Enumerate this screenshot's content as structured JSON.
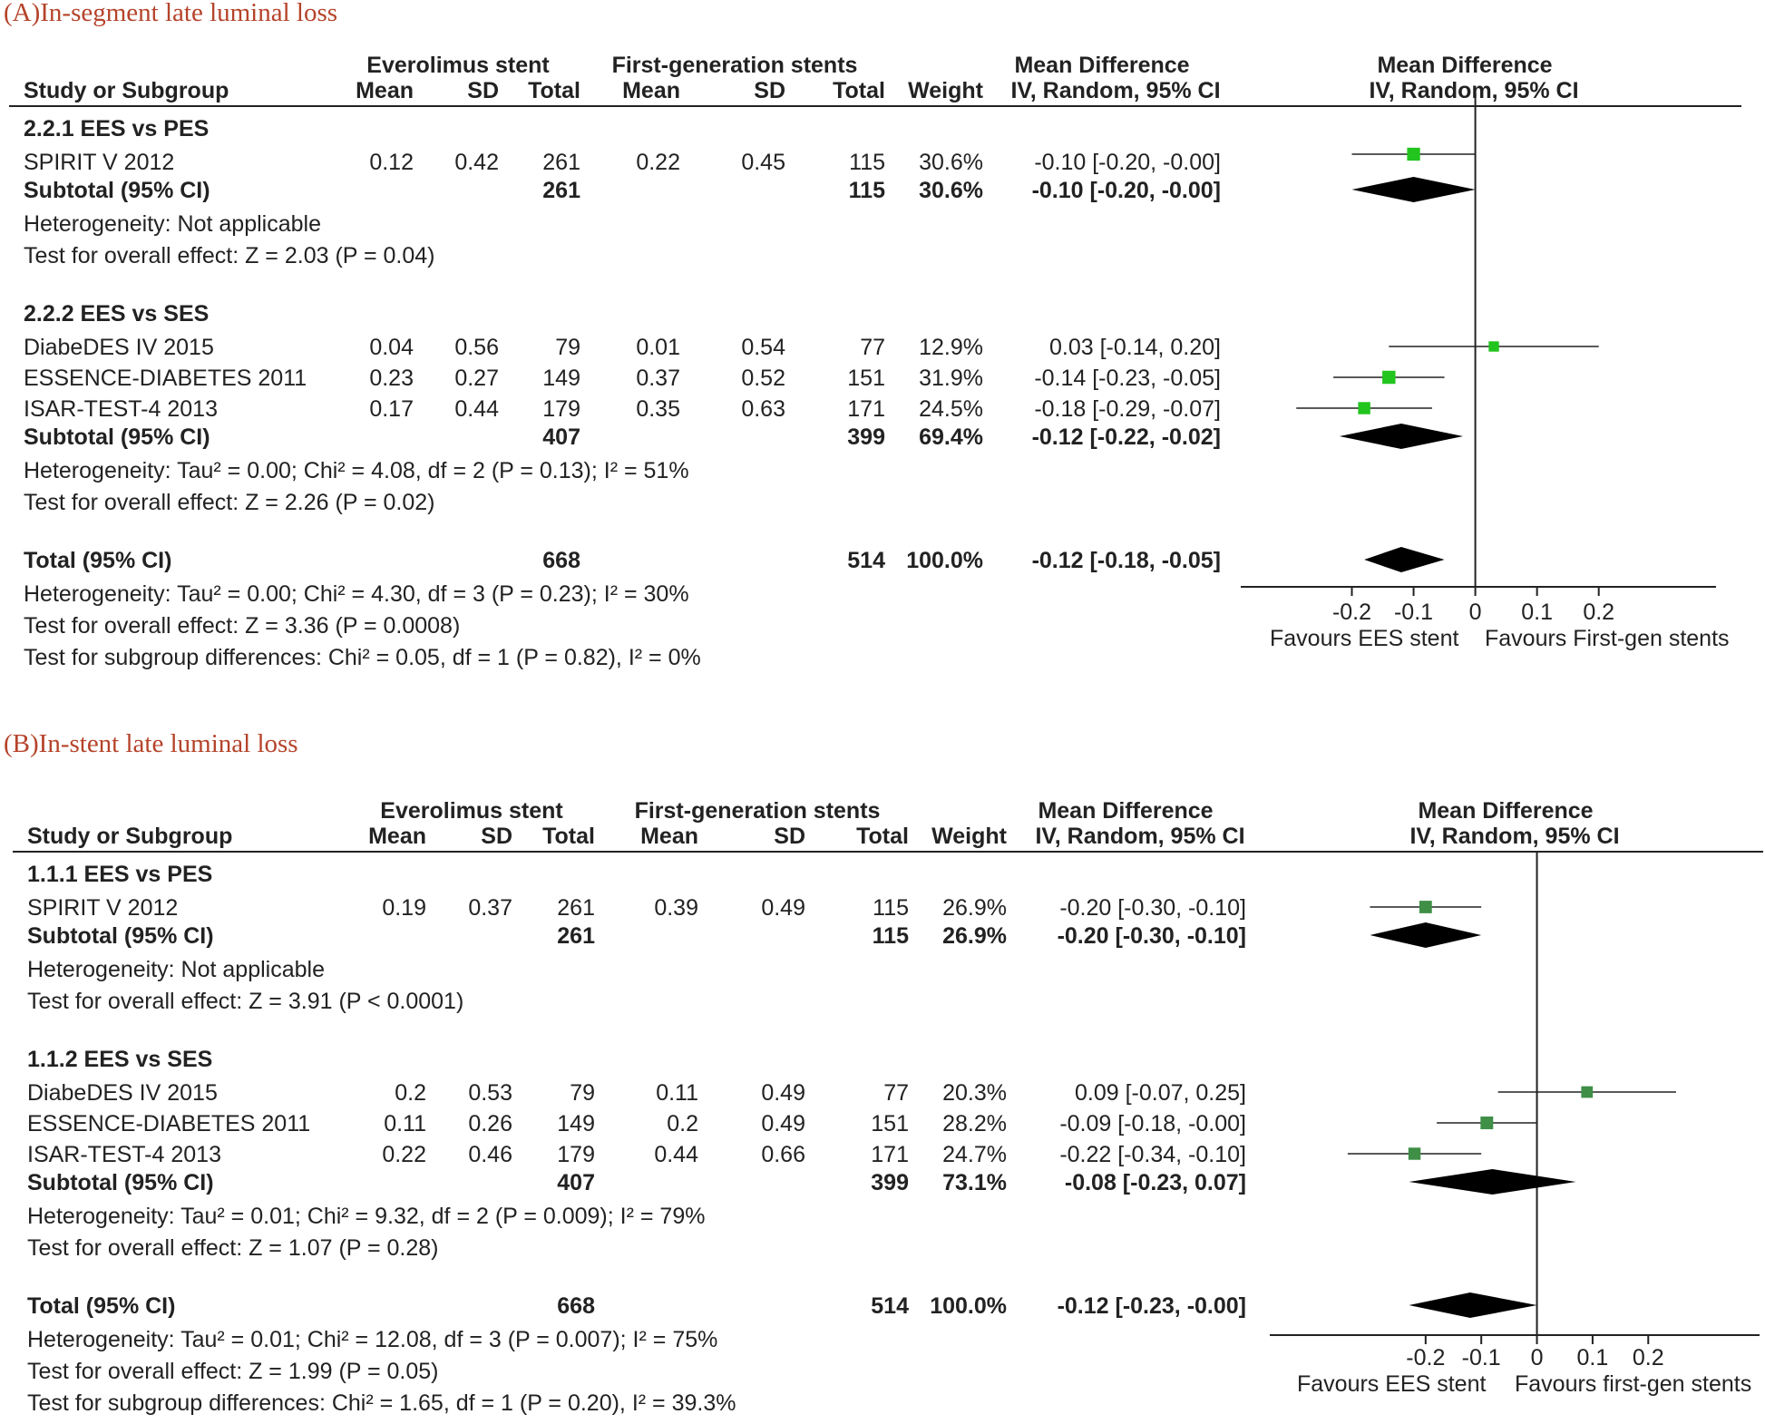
{
  "chart_data": [
    {
      "type": "forest",
      "panel": "A",
      "title": "(A)In-segment late luminal loss",
      "headers": {
        "group1": "Everolimus stent",
        "group2": "First-generation stents",
        "study": "Study or Subgroup",
        "mean": "Mean",
        "sd": "SD",
        "total": "Total",
        "weight": "Weight",
        "md_title": "Mean Difference",
        "md_method": "IV, Random, 95% CI",
        "plot_title": "Mean Difference",
        "plot_method": "IV, Random, 95% CI"
      },
      "subgroups": [
        {
          "name": "2.2.1 EES vs PES",
          "studies": [
            {
              "name": "SPIRIT V 2012",
              "m1": "0.12",
              "sd1": "0.42",
              "n1": "261",
              "m2": "0.22",
              "sd2": "0.45",
              "n2": "115",
              "weight": "30.6%",
              "ci_text": "-0.10 [-0.20, -0.00]",
              "md": -0.1,
              "lo": -0.2,
              "hi": -0.0,
              "w": 30.6
            }
          ],
          "subtotal": {
            "label": "Subtotal (95% CI)",
            "n1": "261",
            "n2": "115",
            "weight": "30.6%",
            "ci_text": "-0.10 [-0.20, -0.00]",
            "md": -0.1,
            "lo": -0.2,
            "hi": -0.0
          },
          "heterogeneity": "Heterogeneity: Not applicable",
          "overall_effect": "Test for overall effect: Z = 2.03 (P = 0.04)"
        },
        {
          "name": "2.2.2 EES vs SES",
          "studies": [
            {
              "name": "DiabeDES IV 2015",
              "m1": "0.04",
              "sd1": "0.56",
              "n1": "79",
              "m2": "0.01",
              "sd2": "0.54",
              "n2": "77",
              "weight": "12.9%",
              "ci_text": "0.03 [-0.14, 0.20]",
              "md": 0.03,
              "lo": -0.14,
              "hi": 0.2,
              "w": 12.9
            },
            {
              "name": "ESSENCE-DIABETES 2011",
              "m1": "0.23",
              "sd1": "0.27",
              "n1": "149",
              "m2": "0.37",
              "sd2": "0.52",
              "n2": "151",
              "weight": "31.9%",
              "ci_text": "-0.14 [-0.23, -0.05]",
              "md": -0.14,
              "lo": -0.23,
              "hi": -0.05,
              "w": 31.9
            },
            {
              "name": "ISAR-TEST-4 2013",
              "m1": "0.17",
              "sd1": "0.44",
              "n1": "179",
              "m2": "0.35",
              "sd2": "0.63",
              "n2": "171",
              "weight": "24.5%",
              "ci_text": "-0.18 [-0.29, -0.07]",
              "md": -0.18,
              "lo": -0.29,
              "hi": -0.07,
              "w": 24.5
            }
          ],
          "subtotal": {
            "label": "Subtotal (95% CI)",
            "n1": "407",
            "n2": "399",
            "weight": "69.4%",
            "ci_text": "-0.12 [-0.22, -0.02]",
            "md": -0.12,
            "lo": -0.22,
            "hi": -0.02
          },
          "heterogeneity": "Heterogeneity: Tau² = 0.00; Chi² = 4.08, df = 2 (P = 0.13); I² = 51%",
          "overall_effect": "Test for overall effect: Z = 2.26 (P = 0.02)"
        }
      ],
      "total": {
        "label": "Total (95% CI)",
        "n1": "668",
        "n2": "514",
        "weight": "100.0%",
        "ci_text": "-0.12 [-0.18, -0.05]",
        "md": -0.12,
        "lo": -0.18,
        "hi": -0.05
      },
      "total_heterogeneity": "Heterogeneity: Tau² = 0.00; Chi² = 4.30, df = 3 (P = 0.23); I² = 30%",
      "total_effect": "Test for overall effect: Z = 3.36 (P = 0.0008)",
      "subgroup_diff": "Test for subgroup differences: Chi² = 0.05, df = 1 (P = 0.82), I² = 0%",
      "axis": {
        "ticks": [
          -0.2,
          -0.1,
          0,
          0.1,
          0.2
        ],
        "tick_labels": [
          "-0.2",
          "-0.1",
          "0",
          "0.1",
          "0.2"
        ],
        "xlim": [
          -0.38,
          0.39
        ]
      },
      "favours_left": "Favours EES stent",
      "favours_right": "Favours First-gen stents",
      "marker_color": "#22c41e"
    },
    {
      "type": "forest",
      "panel": "B",
      "title": "(B)In-stent late luminal loss",
      "headers": {
        "group1": "Everolimus stent",
        "group2": "First-generation stents",
        "study": "Study or Subgroup",
        "mean": "Mean",
        "sd": "SD",
        "total": "Total",
        "weight": "Weight",
        "md_title": "Mean Difference",
        "md_method": "IV, Random, 95% CI",
        "plot_title": "Mean Difference",
        "plot_method": "IV, Random, 95% CI"
      },
      "subgroups": [
        {
          "name": "1.1.1 EES vs PES",
          "studies": [
            {
              "name": "SPIRIT V 2012",
              "m1": "0.19",
              "sd1": "0.37",
              "n1": "261",
              "m2": "0.39",
              "sd2": "0.49",
              "n2": "115",
              "weight": "26.9%",
              "ci_text": "-0.20 [-0.30, -0.10]",
              "md": -0.2,
              "lo": -0.3,
              "hi": -0.1,
              "w": 26.9
            }
          ],
          "subtotal": {
            "label": "Subtotal (95% CI)",
            "n1": "261",
            "n2": "115",
            "weight": "26.9%",
            "ci_text": "-0.20 [-0.30, -0.10]",
            "md": -0.2,
            "lo": -0.3,
            "hi": -0.1
          },
          "heterogeneity": "Heterogeneity: Not applicable",
          "overall_effect": "Test for overall effect: Z = 3.91 (P < 0.0001)"
        },
        {
          "name": "1.1.2 EES vs SES",
          "studies": [
            {
              "name": "DiabeDES IV 2015",
              "m1": "0.2",
              "sd1": "0.53",
              "n1": "79",
              "m2": "0.11",
              "sd2": "0.49",
              "n2": "77",
              "weight": "20.3%",
              "ci_text": "0.09 [-0.07, 0.25]",
              "md": 0.09,
              "lo": -0.07,
              "hi": 0.25,
              "w": 20.3
            },
            {
              "name": "ESSENCE-DIABETES 2011",
              "m1": "0.11",
              "sd1": "0.26",
              "n1": "149",
              "m2": "0.2",
              "sd2": "0.49",
              "n2": "151",
              "weight": "28.2%",
              "ci_text": "-0.09 [-0.18, -0.00]",
              "md": -0.09,
              "lo": -0.18,
              "hi": -0.0,
              "w": 28.2
            },
            {
              "name": "ISAR-TEST-4 2013",
              "m1": "0.22",
              "sd1": "0.46",
              "n1": "179",
              "m2": "0.44",
              "sd2": "0.66",
              "n2": "171",
              "weight": "24.7%",
              "ci_text": "-0.22 [-0.34, -0.10]",
              "md": -0.22,
              "lo": -0.34,
              "hi": -0.1,
              "w": 24.7
            }
          ],
          "subtotal": {
            "label": "Subtotal (95% CI)",
            "n1": "407",
            "n2": "399",
            "weight": "73.1%",
            "ci_text": "-0.08 [-0.23, 0.07]",
            "md": -0.08,
            "lo": -0.23,
            "hi": 0.07
          },
          "heterogeneity": "Heterogeneity: Tau² = 0.01; Chi² = 9.32, df = 2 (P = 0.009); I² = 79%",
          "overall_effect": "Test for overall effect: Z = 1.07 (P = 0.28)"
        }
      ],
      "total": {
        "label": "Total (95% CI)",
        "n1": "668",
        "n2": "514",
        "weight": "100.0%",
        "ci_text": "-0.12 [-0.23, -0.00]",
        "md": -0.12,
        "lo": -0.23,
        "hi": -0.0
      },
      "total_heterogeneity": "Heterogeneity: Tau² = 0.01; Chi² = 12.08, df = 3 (P = 0.007); I² = 75%",
      "total_effect": "Test for overall effect: Z = 1.99 (P = 0.05)",
      "subgroup_diff": "Test for subgroup differences: Chi² = 1.65, df = 1 (P = 0.20), I² = 39.3%",
      "axis": {
        "ticks": [
          -0.2,
          -0.1,
          0,
          0.1,
          0.2
        ],
        "tick_labels": [
          "-0.2",
          "-0.1",
          "0",
          "0.1",
          "0.2"
        ],
        "xlim": [
          -0.48,
          0.4
        ]
      },
      "favours_left": "Favours EES stent",
      "favours_right": "Favours first-gen stents",
      "marker_color": "#3f8f47"
    }
  ]
}
